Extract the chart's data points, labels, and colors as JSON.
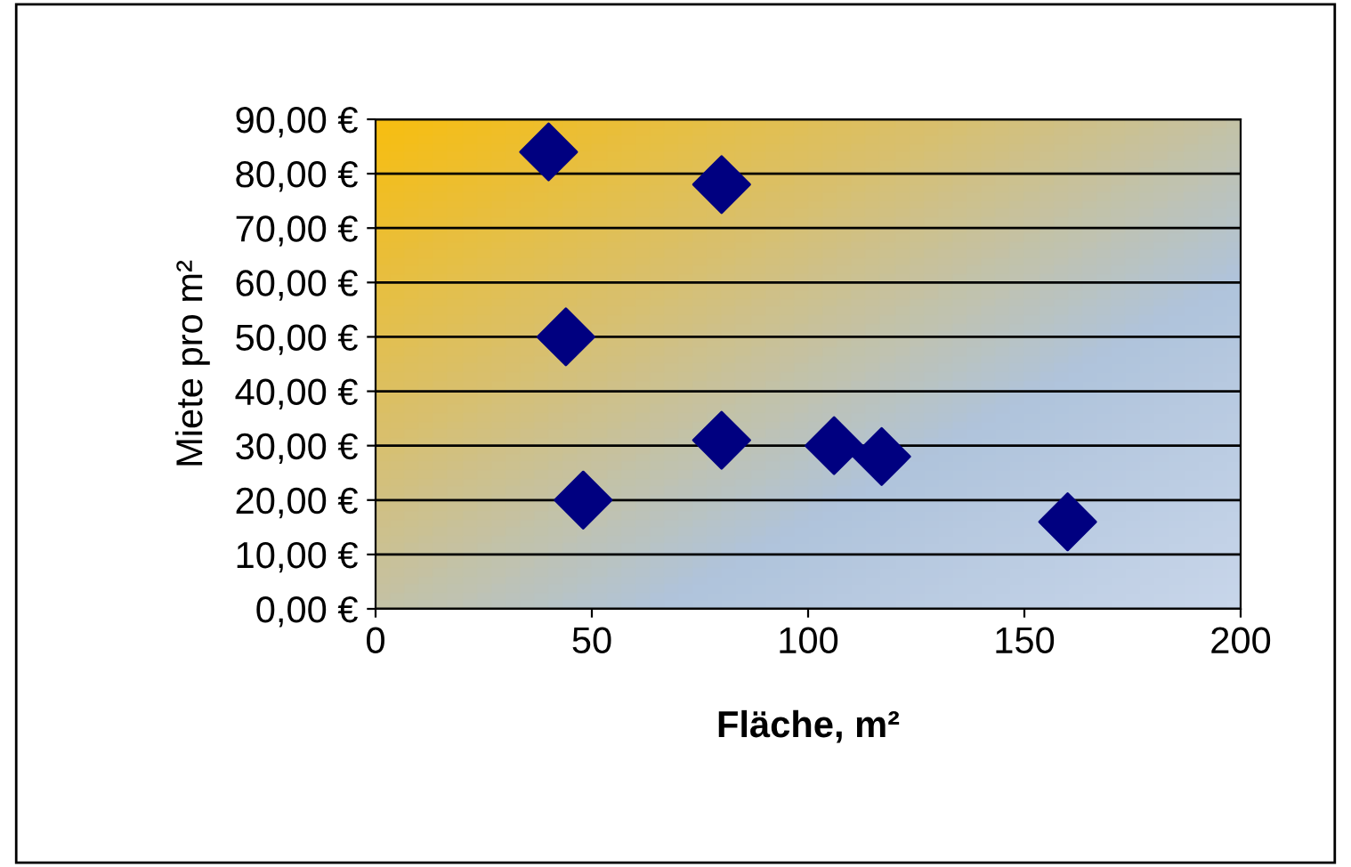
{
  "chart_data": {
    "type": "scatter",
    "xlabel": "Fläche, m²",
    "ylabel": "Miete pro m²",
    "x": [
      40,
      80,
      44,
      80,
      106,
      117,
      48,
      160
    ],
    "values": [
      84,
      78,
      50,
      31,
      30,
      28,
      20,
      16
    ],
    "color": "#000080",
    "marker": "diamond",
    "grid": "y",
    "legend": false,
    "xlim": [
      0,
      200
    ],
    "xticks": [
      0,
      50,
      100,
      150,
      200
    ],
    "ylim": [
      0,
      90
    ],
    "yticks": [
      {
        "value": 0,
        "label": "0,00 €"
      },
      {
        "value": 10,
        "label": "10,00 €"
      },
      {
        "value": 20,
        "label": "20,00 €"
      },
      {
        "value": 30,
        "label": "30,00 €"
      },
      {
        "value": 40,
        "label": "40,00 €"
      },
      {
        "value": 50,
        "label": "50,00 €"
      },
      {
        "value": 60,
        "label": "60,00 €"
      },
      {
        "value": 70,
        "label": "70,00 €"
      },
      {
        "value": 80,
        "label": "80,00 €"
      },
      {
        "value": 90,
        "label": "90,00 €"
      }
    ]
  }
}
